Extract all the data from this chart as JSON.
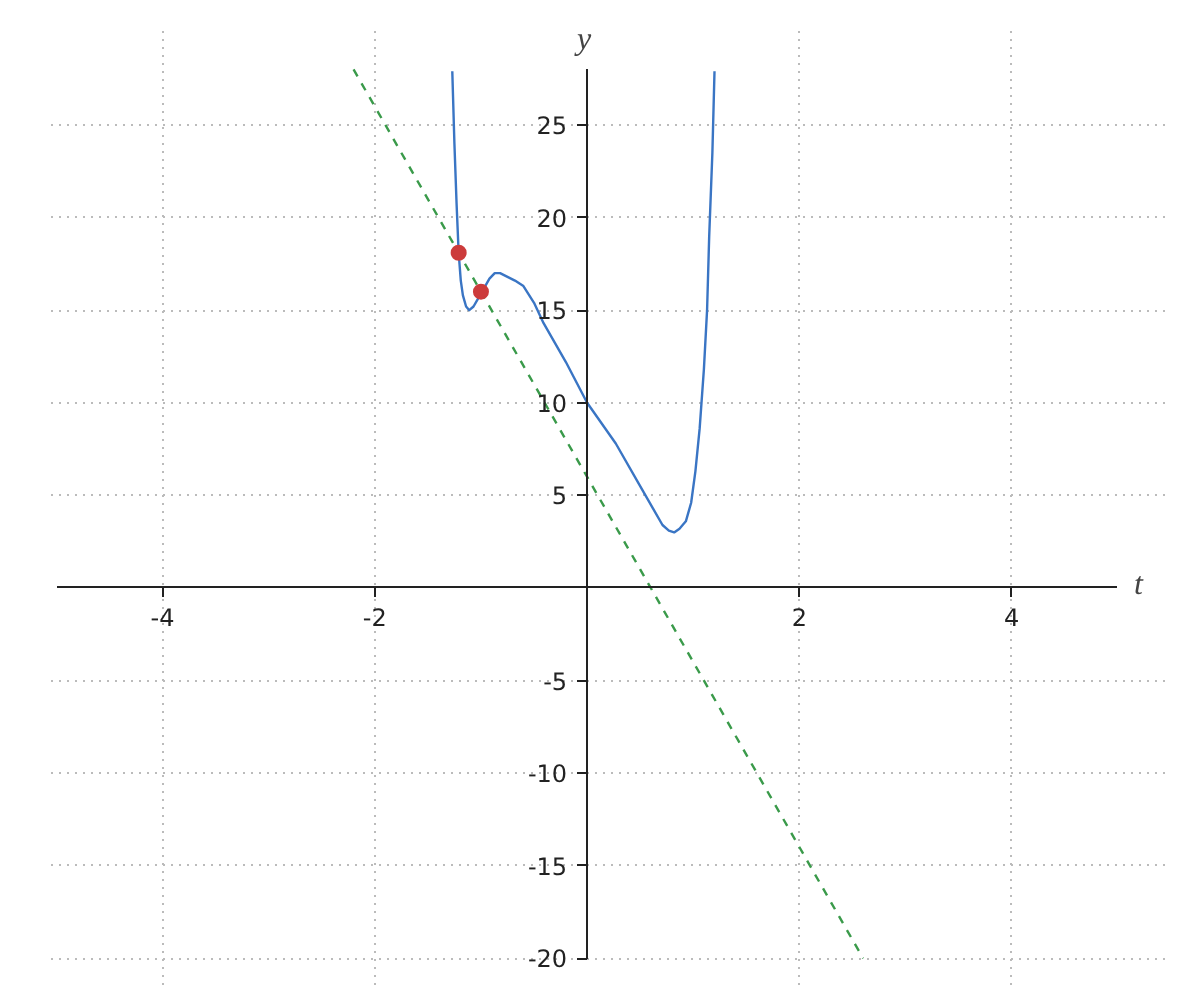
{
  "chart_data": {
    "type": "line",
    "xlabel": "t",
    "ylabel": "y",
    "xlim": [
      -5,
      5
    ],
    "ylim": [
      -20,
      28
    ],
    "xticks": [
      -4,
      -2,
      2,
      4
    ],
    "yticks": [
      -20,
      -15,
      -10,
      -5,
      5,
      10,
      15,
      20,
      25
    ],
    "grid": true,
    "series": [
      {
        "color": "#3a75c4",
        "x": [
          -1.27,
          -1.25,
          -1.23,
          -1.21,
          -1.19,
          -1.17,
          -1.14,
          -1.11,
          -1.07,
          -1.03,
          -0.98,
          -0.92,
          -0.87,
          -0.82,
          -0.75,
          -0.68,
          -0.6,
          -0.5,
          -0.41,
          -0.2,
          0,
          0.27,
          0.52,
          0.62,
          0.71,
          0.77,
          0.82,
          0.87,
          0.93,
          0.98,
          1.02,
          1.06,
          1.1,
          1.13,
          1.15,
          1.18,
          1.2
        ],
        "values": [
          27.9,
          24,
          20.8,
          18.1,
          16.6,
          15.8,
          15.2,
          15.0,
          15.2,
          15.6,
          16.1,
          16.7,
          17.0,
          17.0,
          16.8,
          16.6,
          16.3,
          15.4,
          14.3,
          12.2,
          10,
          7.8,
          5.3,
          4.3,
          3.4,
          3.1,
          3.0,
          3.2,
          3.6,
          4.6,
          6.3,
          8.6,
          11.8,
          15,
          19,
          23.5,
          27.9
        ]
      },
      {
        "color": "#3a9a4a",
        "line_style": "dashed",
        "x": [
          -2.2,
          2.6
        ],
        "values": [
          28,
          -20
        ]
      },
      {
        "type": "scatter",
        "marker": "circle",
        "color": "#cc3b3b",
        "x": [
          -1.21,
          -1
        ],
        "values": [
          18.1,
          16
        ]
      }
    ]
  }
}
